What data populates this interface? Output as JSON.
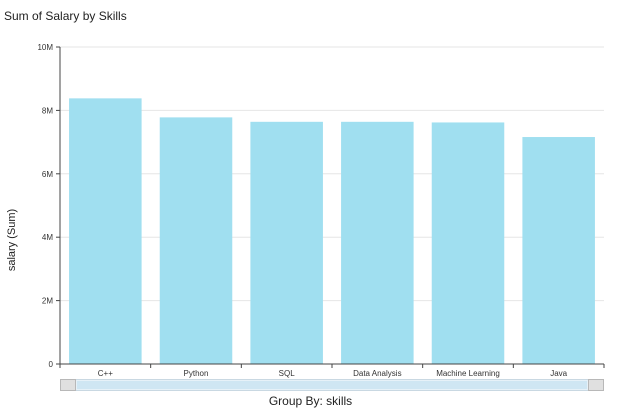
{
  "chart_data": {
    "type": "bar",
    "title": "Sum of Salary by Skills",
    "xlabel": "Group By: skills",
    "ylabel": "salary (Sum)",
    "categories": [
      "C++",
      "Python",
      "SQL",
      "Data Analysis",
      "Machine Learning",
      "Java"
    ],
    "values": [
      8380000,
      7780000,
      7640000,
      7640000,
      7620000,
      7160000
    ],
    "ylim": [
      0,
      10000000
    ],
    "yticks": [
      {
        "value": 0,
        "label": "0"
      },
      {
        "value": 2000000,
        "label": "2M"
      },
      {
        "value": 4000000,
        "label": "4M"
      },
      {
        "value": 6000000,
        "label": "6M"
      },
      {
        "value": 8000000,
        "label": "8M"
      },
      {
        "value": 10000000,
        "label": "10M"
      }
    ],
    "grid": true,
    "bar_color": "#a0dff0"
  }
}
